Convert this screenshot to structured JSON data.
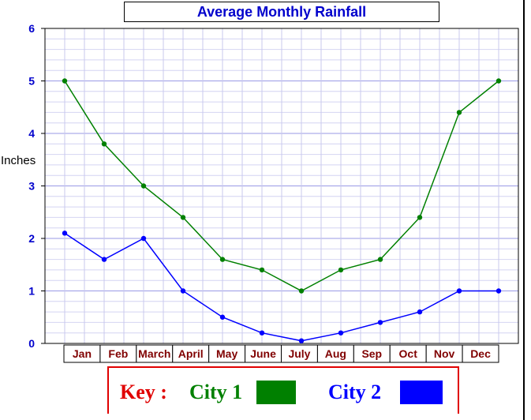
{
  "chart_data": {
    "type": "line",
    "title": "Average Monthly Rainfall",
    "ylabel": "Inches",
    "xlabel": "",
    "categories": [
      "Jan",
      "Feb",
      "March",
      "April",
      "May",
      "June",
      "July",
      "Aug",
      "Sep",
      "Oct",
      "Nov",
      "Dec"
    ],
    "ylim": [
      0,
      6
    ],
    "yticks": [
      "0",
      "1",
      "2",
      "3",
      "4",
      "5",
      "6"
    ],
    "grid": true,
    "legend_position": "bottom",
    "series": [
      {
        "name": "City 1",
        "color": "#008000",
        "values": [
          5.0,
          3.8,
          3.0,
          2.4,
          1.6,
          1.4,
          1.0,
          1.4,
          1.6,
          2.4,
          4.4,
          5.0
        ]
      },
      {
        "name": "City 2",
        "color": "#0000ff",
        "values": [
          2.1,
          1.6,
          2.0,
          1.0,
          0.5,
          0.2,
          0.05,
          0.2,
          0.4,
          0.6,
          1.0,
          1.0
        ]
      }
    ],
    "key_label": "Key :"
  }
}
